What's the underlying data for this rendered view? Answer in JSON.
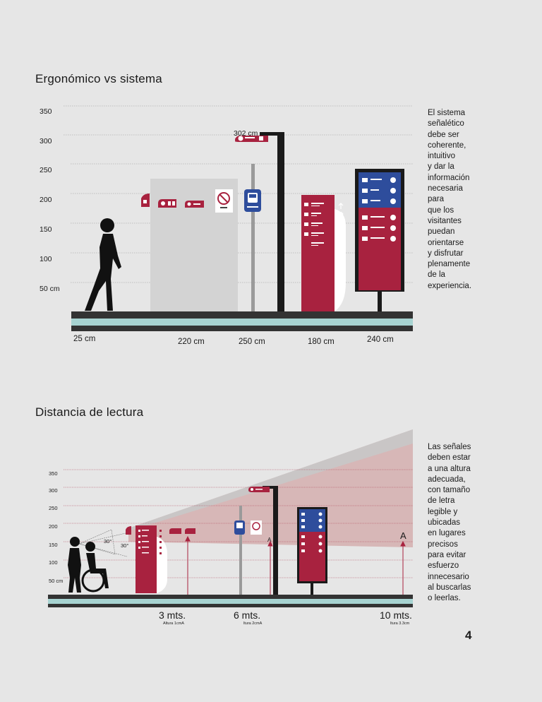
{
  "section1": {
    "title": "Ergonómico vs sistema",
    "y_labels": [
      "350",
      "300",
      "250",
      "200",
      "150",
      "100",
      "50 cm"
    ],
    "x_labels": [
      "25 cm",
      "220 cm",
      "250 cm",
      "180 cm",
      "240 cm"
    ],
    "height_marker": "302 cm",
    "description": [
      "El sistema",
      "señalético",
      "debe ser",
      "coherente,",
      "intuitivo",
      "y dar la",
      "información",
      "necesaria",
      "para",
      "que los",
      "visitantes",
      "puedan",
      "orientarse",
      "y disfrutar",
      "plenamente",
      "de la",
      "experiencia."
    ]
  },
  "section2": {
    "title": "Distancia de lectura",
    "y_labels": [
      "350",
      "300",
      "250",
      "200",
      "150",
      "100",
      "50 cm"
    ],
    "angles": [
      "30°",
      "30°"
    ],
    "letter_markers": [
      "A",
      "A"
    ],
    "distances": [
      {
        "label": "3 mts.",
        "sub": "Altura 1cmA"
      },
      {
        "label": "6 mts.",
        "sub": "ltura 2cmA"
      },
      {
        "label": "10 mts.",
        "sub": "ltura 3.3cm"
      }
    ],
    "description": [
      "Las señales",
      "deben estar",
      "a una altura",
      "adecuada,",
      "con tamaño",
      "de letra",
      "legible y",
      "ubicadas",
      "en lugares",
      "precisos",
      "para evitar",
      "esfuerzo",
      "innecesario",
      "al buscarlas",
      "o leerlas."
    ]
  },
  "page_number": "4",
  "colors": {
    "red": "#a8223f",
    "blue": "#2e4d9c",
    "dark": "#2b2b2b",
    "teal": "#a7d3d1",
    "panel": "#d3d3d3",
    "cone": "#d4aeae"
  }
}
